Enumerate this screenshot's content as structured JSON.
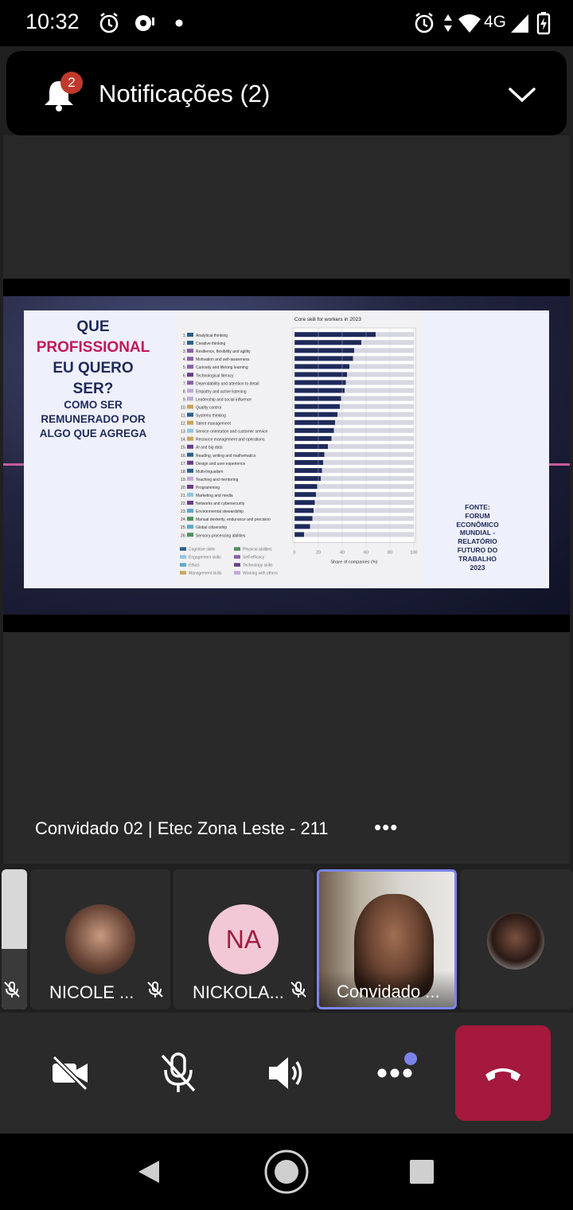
{
  "status_bar": {
    "time": "10:32",
    "network": "4G",
    "icons": [
      "alarm-icon",
      "hotspot-icon",
      "dot-icon",
      "alarm-icon",
      "data-arrows-icon",
      "wifi-icon",
      "signal-icon",
      "battery-charging-icon"
    ]
  },
  "notification": {
    "label": "Notificações (2)",
    "badge_count": "2",
    "icon": "bell-icon",
    "expand_icon": "chevron-down-icon"
  },
  "slide": {
    "title_line1": "QUE",
    "title_line2": "PROFISSIONAL",
    "title_line3": "EU QUERO",
    "title_line4": "SER?",
    "subtitle_line1": "COMO SER",
    "subtitle_line2": "REMUNERADO POR",
    "subtitle_line3": "ALGO QUE AGREGA",
    "source_lines": [
      "FONTE:",
      "FORUM",
      "ECONÔMICO",
      "MUNDIAL -",
      "RELATÓRIO",
      "FUTURO DO",
      "TRABALHO",
      "2023"
    ],
    "title_accent_color": "#c2185b",
    "title_color": "#1f2a5a"
  },
  "chart_data": {
    "type": "bar",
    "orientation": "horizontal",
    "title": "Core skill for workers in 2023",
    "xlabel": "Share of companies (%)",
    "xlim": [
      0,
      100
    ],
    "xticks": [
      "0",
      "20",
      "40",
      "60",
      "80",
      "100"
    ],
    "categories": [
      "Analytical thinking",
      "Creative thinking",
      "Resilience, flexibility and agility",
      "Motivation and self-awareness",
      "Curiosity and lifelong learning",
      "Technological literacy",
      "Dependability and attention to detail",
      "Empathy and active listening",
      "Leadership and social influence",
      "Quality control",
      "Systems thinking",
      "Talent management",
      "Service orientation and customer service",
      "Resource management and operations",
      "AI and big data",
      "Reading, writing and mathematics",
      "Design and user experience",
      "Multi-lingualism",
      "Teaching and mentoring",
      "Programming",
      "Marketing and media",
      "Networks and cybersecurity",
      "Environmental stewardship",
      "Manual dexterity, endurance and precision",
      "Global citizenship",
      "Sensory-processing abilities"
    ],
    "ranks": [
      "1.",
      "2.",
      "3.",
      "4.",
      "5.",
      "6.",
      "7.",
      "8.",
      "9.",
      "10.",
      "11.",
      "12.",
      "13.",
      "14.",
      "15.",
      "16.",
      "17.",
      "18.",
      "19.",
      "20.",
      "21.",
      "22.",
      "23.",
      "24.",
      "25.",
      "26."
    ],
    "values": [
      68,
      56,
      50,
      49,
      46,
      44,
      43,
      42,
      39,
      38,
      36,
      34,
      33,
      31,
      28,
      25,
      24,
      23,
      22,
      19,
      18,
      17,
      16,
      15,
      13,
      8
    ],
    "category_groups": [
      "Cognitive skills",
      "Cognitive skills",
      "Self-efficacy",
      "Self-efficacy",
      "Self-efficacy",
      "Technology skills",
      "Self-efficacy",
      "Working with others",
      "Working with others",
      "Management skills",
      "Cognitive skills",
      "Management skills",
      "Engagement skills",
      "Management skills",
      "Technology skills",
      "Cognitive skills",
      "Technology skills",
      "Cognitive skills",
      "Working with others",
      "Technology skills",
      "Engagement skills",
      "Technology skills",
      "Ethics",
      "Physical abilities",
      "Ethics",
      "Physical abilities"
    ],
    "legend": [
      {
        "name": "Cognitive skills",
        "color": "#2c5f8a"
      },
      {
        "name": "Engagement skills",
        "color": "#8fc6e0"
      },
      {
        "name": "Ethics",
        "color": "#5aa7c9"
      },
      {
        "name": "Management skills",
        "color": "#c9a45a"
      },
      {
        "name": "Physical abilities",
        "color": "#4f8f5b"
      },
      {
        "name": "Self-efficacy",
        "color": "#8a5fa8"
      },
      {
        "name": "Technology skills",
        "color": "#6a3d8a"
      },
      {
        "name": "Working with others",
        "color": "#c0a8d8"
      }
    ],
    "bar_color": "#1f2a5a",
    "track_color": "#d6d7e0",
    "grid": true
  },
  "caption": {
    "name": "Convidado 02 | Etec Zona Leste - 211",
    "more": "•••"
  },
  "participants": [
    {
      "name": "",
      "muted": true
    },
    {
      "name": "NICOLE ...",
      "muted": true
    },
    {
      "name": "NICKOLA...",
      "initials": "NA",
      "muted": true
    },
    {
      "name": "Convidado ...",
      "muted": false,
      "active": true
    },
    {
      "name": "",
      "muted": false
    }
  ],
  "controls": {
    "camera": "video-off-icon",
    "mic": "mic-off-icon",
    "speaker": "speaker-icon",
    "more": "more-icon",
    "hangup": "hang-up-icon",
    "accent_color": "#7b83eb",
    "hangup_color": "#a4193d"
  },
  "nav": {
    "back": "back-icon",
    "home": "home-icon",
    "recents": "recents-icon"
  }
}
